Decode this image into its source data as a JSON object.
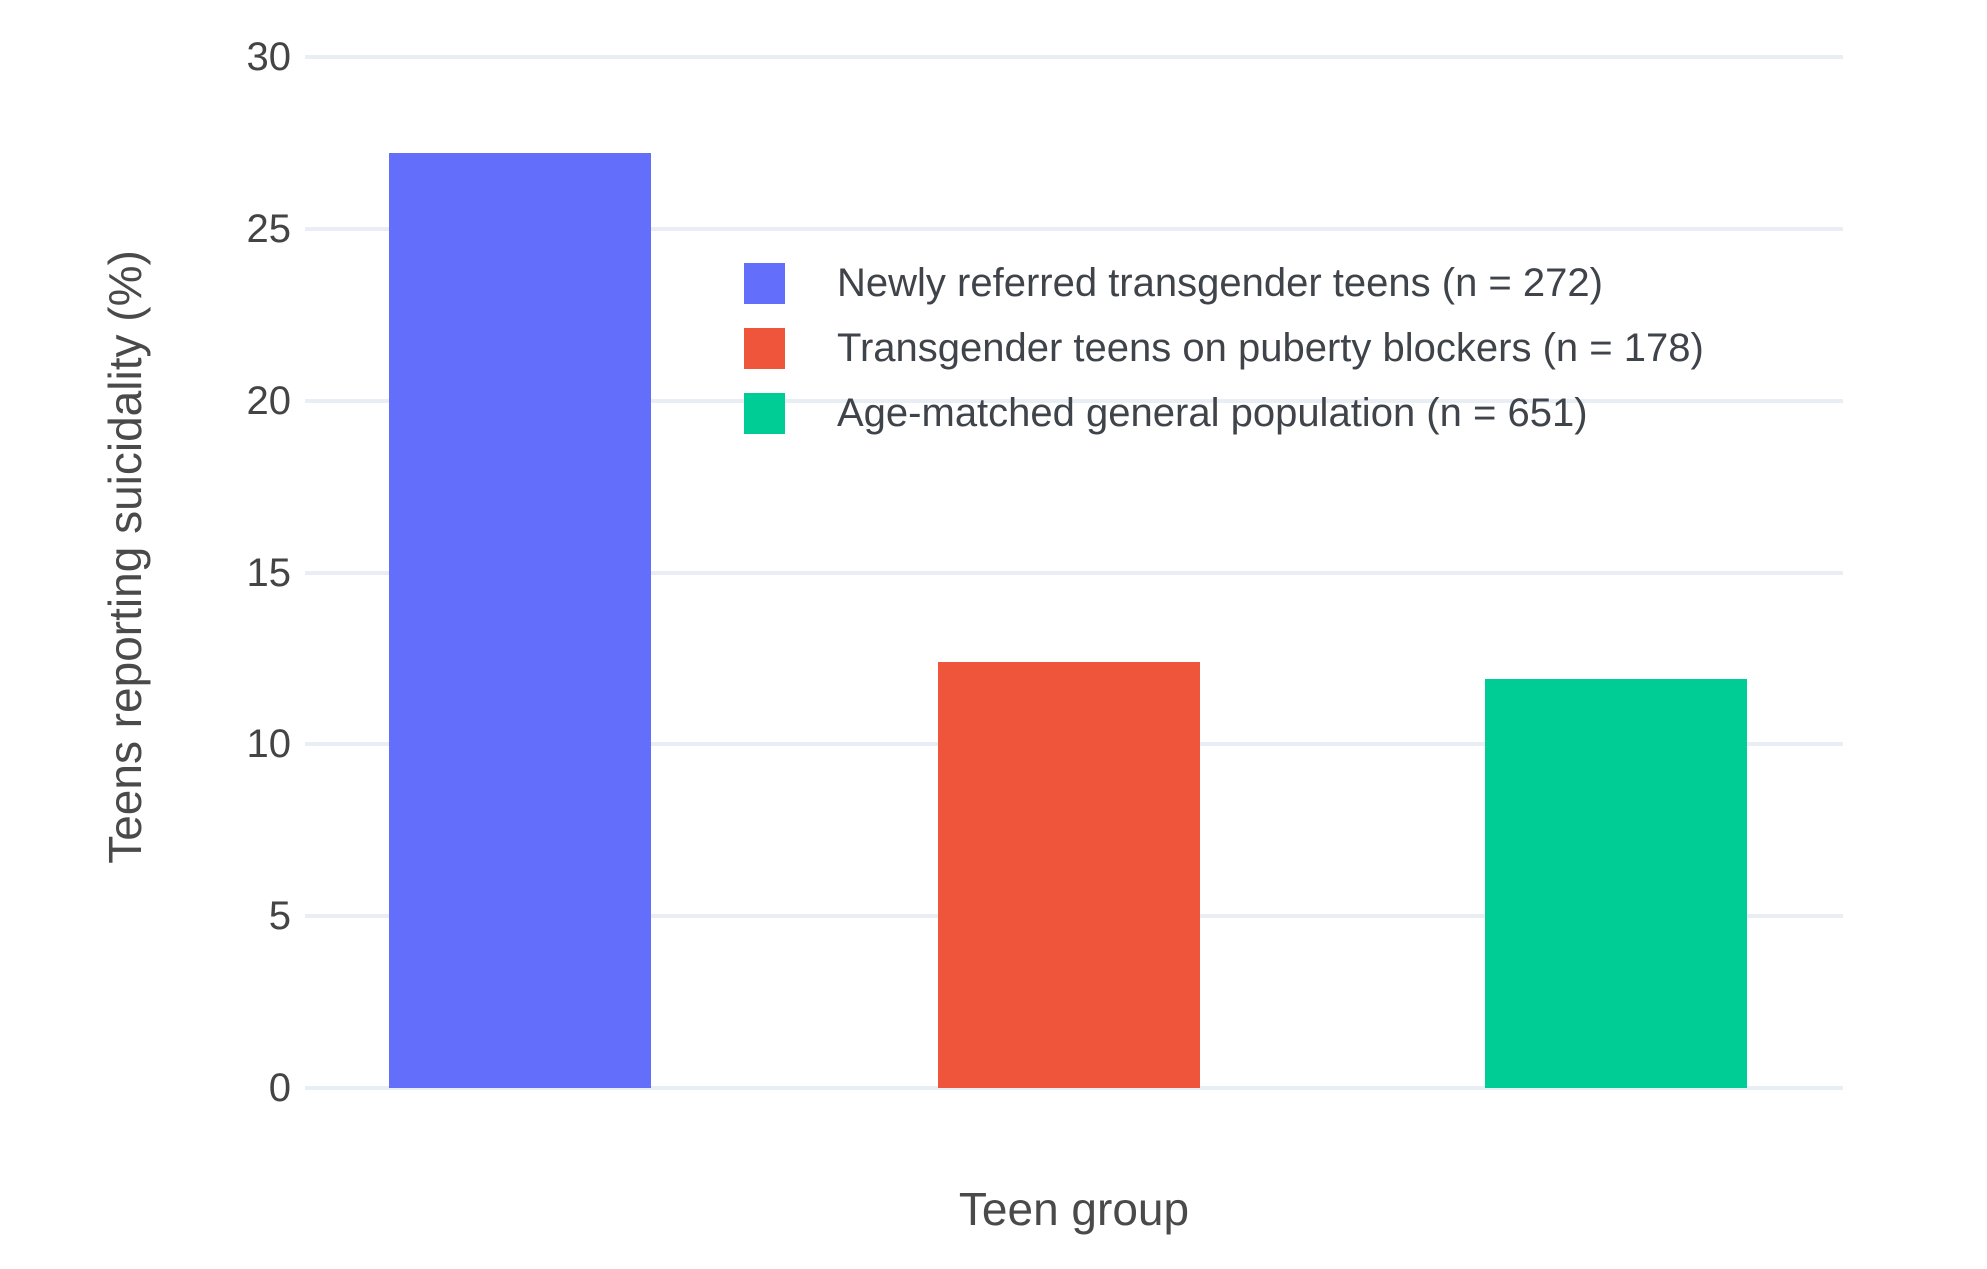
{
  "chart_data": {
    "type": "bar",
    "title": "",
    "xlabel": "Teen group",
    "ylabel": "Teens reporting suicidality (%)",
    "ylim": [
      0,
      30
    ],
    "yticks": [
      0,
      5,
      10,
      15,
      20,
      25,
      30
    ],
    "grid": true,
    "legend_position": "inside upper-center",
    "background_color": "#ffffff",
    "gridline_color": "#e9eef5",
    "text_color": "#444444",
    "series": [
      {
        "name": "Newly referred transgender teens (n = 272)",
        "value": 27.2,
        "color": "#636efa"
      },
      {
        "name": "Transgender teens on puberty blockers (n = 178)",
        "value": 12.4,
        "color": "#ef553b"
      },
      {
        "name": "Age-matched general population (n = 651)",
        "value": 11.9,
        "color": "#00cc96"
      }
    ]
  }
}
